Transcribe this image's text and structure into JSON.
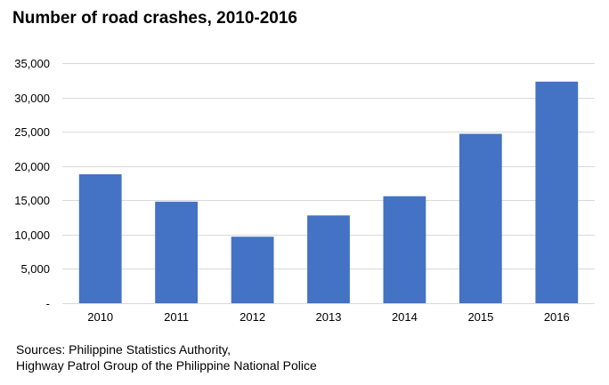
{
  "chart_data": {
    "type": "bar",
    "title": "Number of road crashes, 2010-2016",
    "xlabel": "",
    "ylabel": "",
    "categories": [
      "2010",
      "2011",
      "2012",
      "2013",
      "2014",
      "2015",
      "2016"
    ],
    "values": [
      18800,
      14800,
      9700,
      12800,
      15600,
      24700,
      32300
    ],
    "ylim": [
      0,
      35000
    ],
    "yticks": [
      0,
      5000,
      10000,
      15000,
      20000,
      25000,
      30000,
      35000
    ],
    "ytick_labels": [
      "-",
      "5,000",
      "10,000",
      "15,000",
      "20,000",
      "25,000",
      "30,000",
      "35,000"
    ],
    "grid": true,
    "legend": "none",
    "bar_color": "#4472c4",
    "grid_color": "#d9d9d9"
  },
  "footer": {
    "sources_line1": "Sources: Philippine Statistics Authority,",
    "sources_line2": "Highway Patrol Group of the Philippine National Police"
  }
}
